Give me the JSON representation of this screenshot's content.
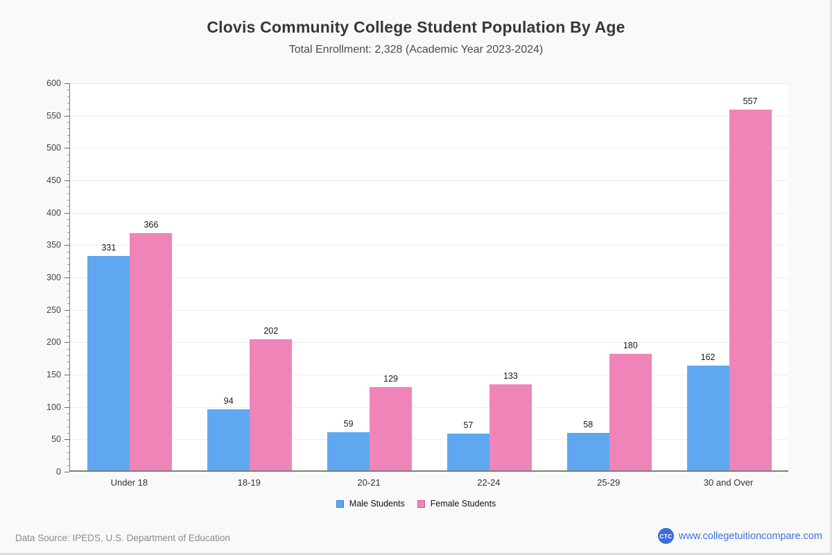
{
  "header": {
    "title": "Clovis Community College Student Population By Age",
    "subtitle": "Total Enrollment: 2,328 (Academic Year 2023-2024)"
  },
  "chart_data": {
    "type": "bar",
    "title": "Clovis Community College Student Population By Age",
    "subtitle": "Total Enrollment: 2,328 (Academic Year 2023-2024)",
    "categories": [
      "Under 18",
      "18-19",
      "20-21",
      "22-24",
      "25-29",
      "30 and Over"
    ],
    "series": [
      {
        "name": "Male Students",
        "color": "#5fa8f0",
        "border_color": "#3c7bd9",
        "values": [
          331,
          94,
          59,
          57,
          58,
          162
        ]
      },
      {
        "name": "Female Students",
        "color": "#ef84b9",
        "border_color": "#d45a96",
        "values": [
          366,
          202,
          129,
          133,
          180,
          557
        ]
      }
    ],
    "ylim": [
      0,
      600
    ],
    "ytick_step": 50,
    "minor_tick_step": 10,
    "grid": true,
    "data_labels": true,
    "legend_position": "bottom"
  },
  "footer": {
    "source": "Data Source: IPEDS, U.S. Department of Education",
    "brand_badge": "CTC",
    "brand_url": "www.collegetuitioncompare.com"
  },
  "colors": {
    "background": "#f9f9f9",
    "plot_background": "#ffffff",
    "male_bar": "#5fa8f0",
    "female_bar": "#ef84b9",
    "link_blue": "#4170d8",
    "badge_blue": "#3a6fd8"
  }
}
